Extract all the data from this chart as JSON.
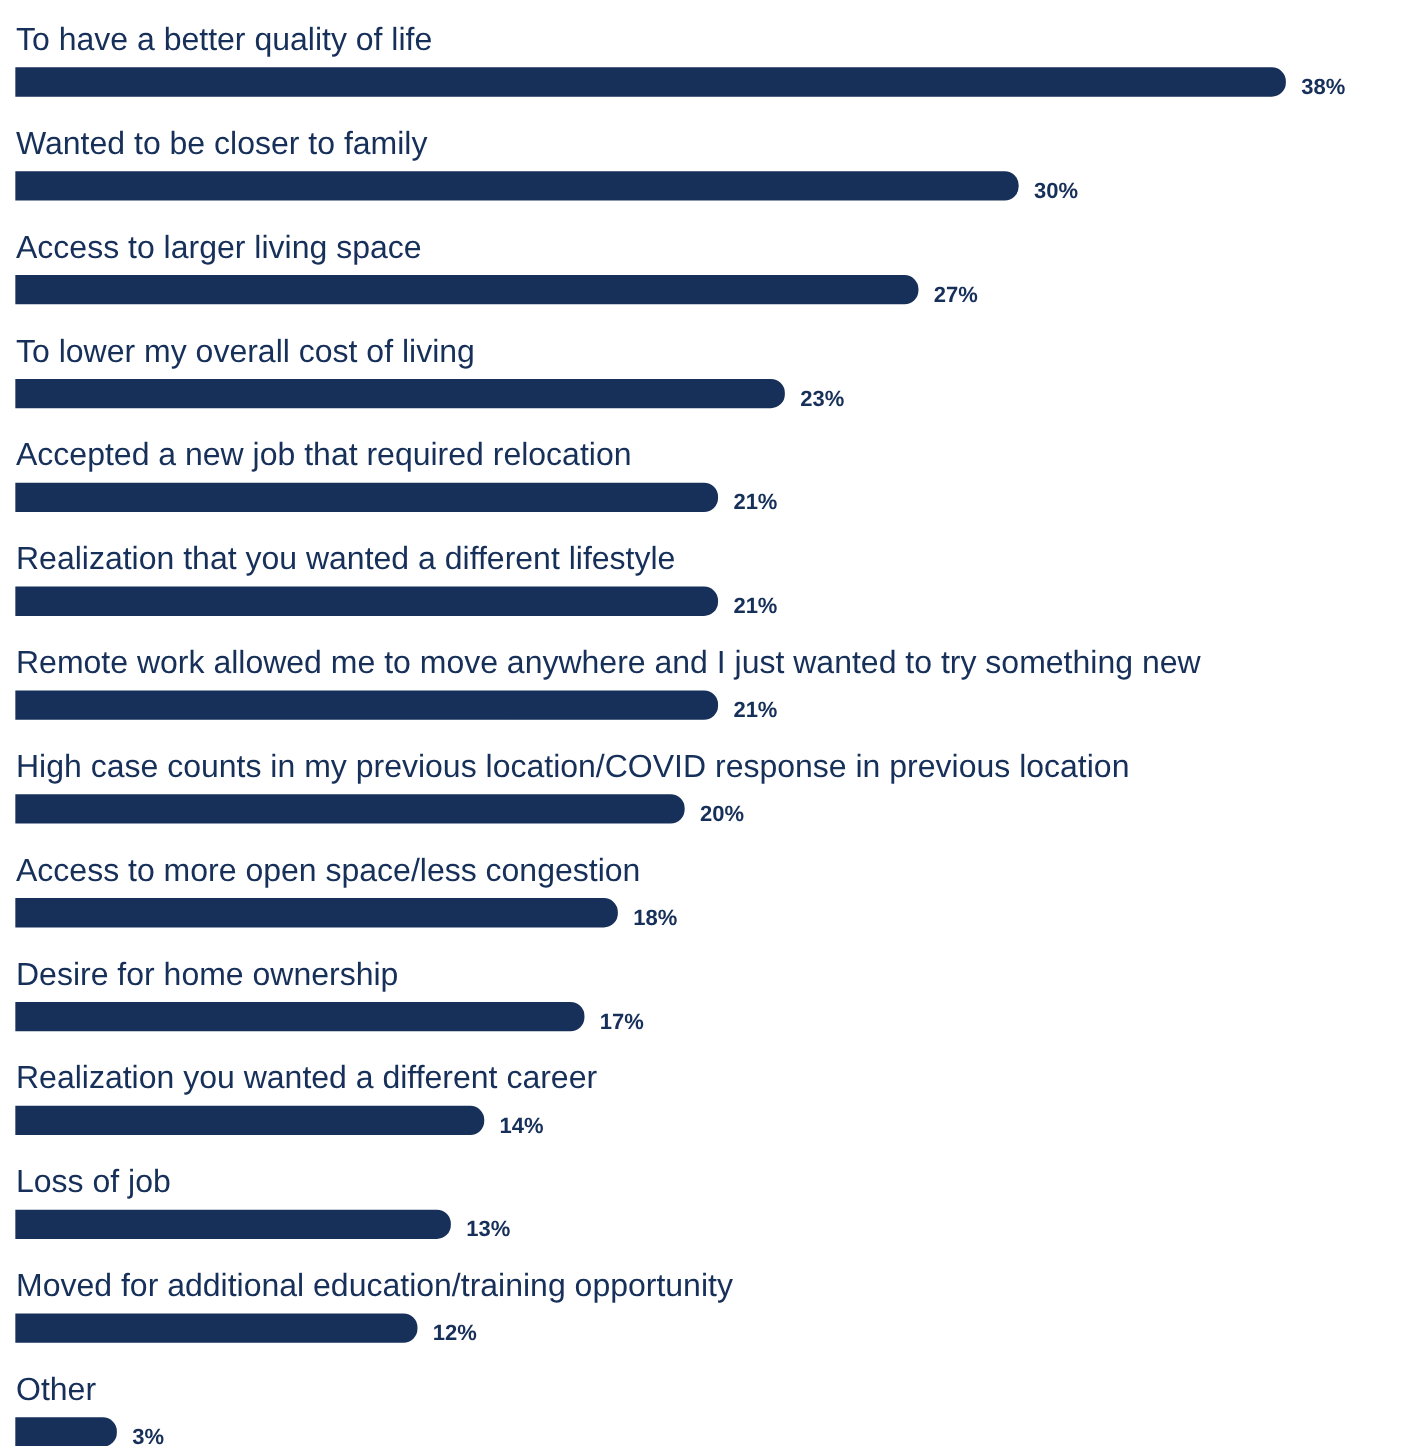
{
  "chart_data": {
    "type": "bar",
    "orientation": "horizontal",
    "categories": [
      "To have a better quality of life",
      "Wanted to be closer to family",
      "Access to larger living space",
      "To lower my overall cost of living",
      "Accepted a new job that required relocation",
      "Realization that you wanted a different lifestyle",
      "Remote work allowed me to move anywhere and I just wanted to try something new",
      "High case counts in my previous location/COVID response in previous location",
      "Access to more open space/less congestion",
      "Desire for home ownership",
      "Realization you wanted a different career",
      "Loss of job",
      "Moved for additional education/training opportunity",
      "Other"
    ],
    "values": [
      38,
      30,
      27,
      23,
      21,
      21,
      21,
      20,
      18,
      17,
      14,
      13,
      12,
      3
    ],
    "value_labels": [
      "38%",
      "30%",
      "27%",
      "23%",
      "21%",
      "21%",
      "21%",
      "20%",
      "18%",
      "17%",
      "14%",
      "13%",
      "12%",
      "3%"
    ],
    "color": "#17305a"
  }
}
